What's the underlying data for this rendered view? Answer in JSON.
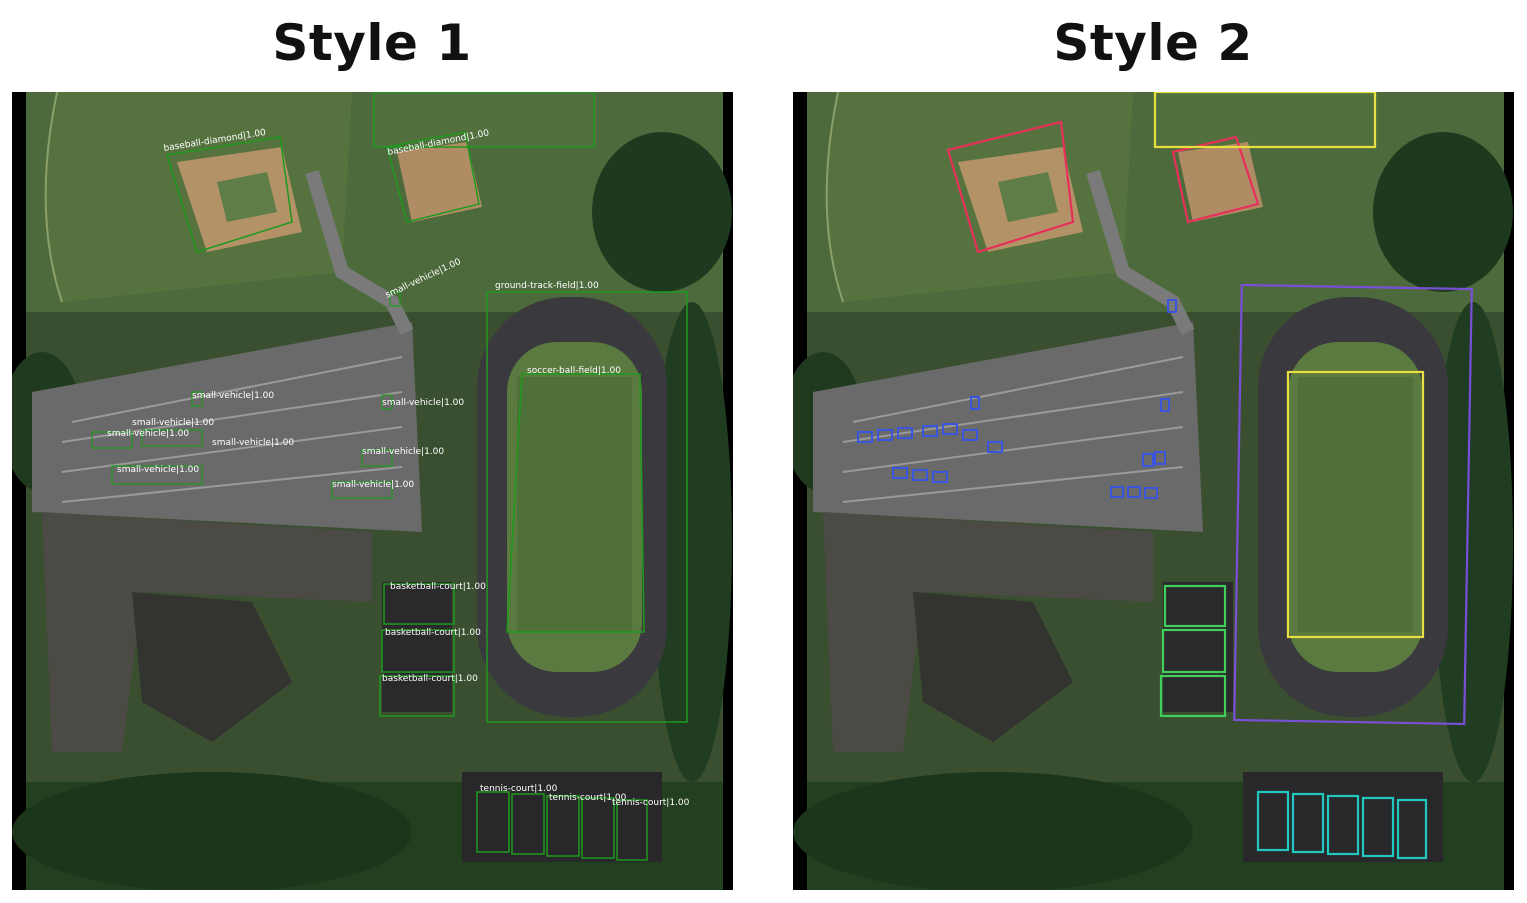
{
  "titles": {
    "left": "Style 1",
    "right": "Style 2"
  },
  "labels": {
    "baseball_diamond": "baseball-diamond|1.00",
    "small_vehicle": "small-vehicle|1.00",
    "ground_track_field": "ground-track-field|1.00",
    "soccer_ball_field": "soccer-ball-field|1.00",
    "basketball_court": "basketball-court|1.00",
    "tennis_court": "tennis-court|1.00"
  },
  "colors": {
    "style1_box": "#1e9a1e",
    "baseball_diamond": "#e8305a",
    "small_vehicle": "#3a55e0",
    "ground_track_field": "#7a4fd8",
    "soccer_ball_field": "#e8e040",
    "basketball_court": "#3fcf5a",
    "tennis_court": "#22c8c0"
  }
}
